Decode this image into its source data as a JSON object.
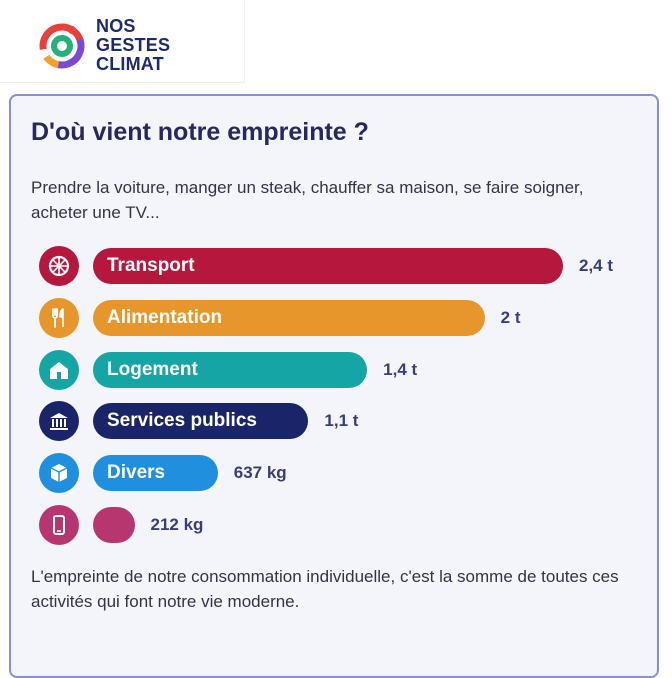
{
  "header": {
    "logo_line1": "NOS",
    "logo_line2": "GESTES",
    "logo_line3": "CLIMAT"
  },
  "card": {
    "title": "D'où vient notre empreinte ?",
    "intro": "Prendre la voiture, manger un steak, chauffer sa maison, se faire soigner, acheter une TV...",
    "footer": "L'empreinte de notre consommation individuelle, c'est la somme de toutes ces activités qui font notre vie moderne."
  },
  "chart_data": {
    "type": "bar",
    "orientation": "horizontal",
    "categories": [
      "Transport",
      "Alimentation",
      "Logement",
      "Services publics",
      "Divers",
      ""
    ],
    "values_t": [
      2.4,
      2.0,
      1.4,
      1.1,
      0.637,
      0.212
    ],
    "value_labels": [
      "2,4 t",
      "2 t",
      "1,4 t",
      "1,1 t",
      "637 kg",
      "212 kg"
    ],
    "colors": [
      "#b5173d",
      "#e6962a",
      "#15a5a5",
      "#192568",
      "#1f8fde",
      "#b8366f"
    ],
    "icons": [
      "wheel-icon",
      "cutlery-icon",
      "house-icon",
      "bank-icon",
      "box-icon",
      "phone-icon"
    ],
    "xlim": [
      0,
      2.4
    ]
  }
}
